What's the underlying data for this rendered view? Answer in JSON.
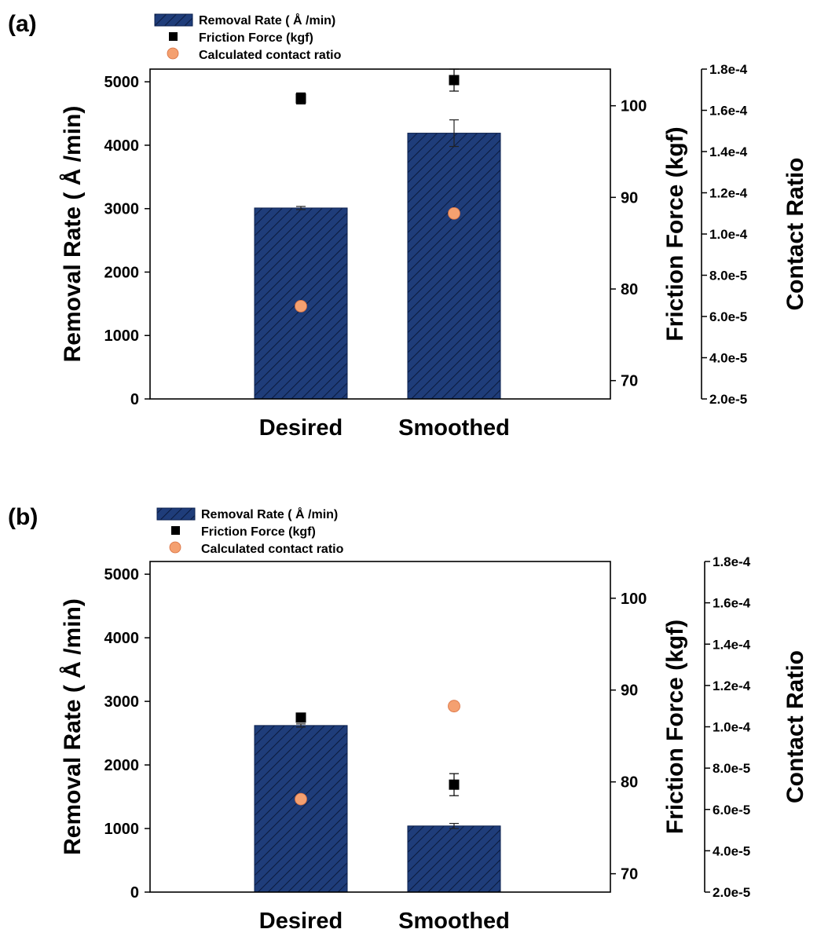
{
  "chart_data": [
    {
      "panel_label": "(a)",
      "type": "bar",
      "categories": [
        "Desired",
        "Smoothed"
      ],
      "legend": [
        {
          "label": "Removal Rate ( Å /min)",
          "marker": "hatched-bar"
        },
        {
          "label": "Friction Force (kgf)",
          "marker": "black-square"
        },
        {
          "label": "Calculated contact ratio",
          "marker": "orange-circle"
        }
      ],
      "axes": {
        "left": {
          "label": "Removal Rate ( Å /min)",
          "ylim": [
            0,
            5200
          ],
          "ticks": [
            0,
            1000,
            2000,
            3000,
            4000,
            5000
          ],
          "tick_labels": [
            "0",
            "1000",
            "2000",
            "3000",
            "4000",
            "5000"
          ]
        },
        "right1": {
          "label": "Friction Force (kgf)",
          "ylim": [
            68,
            104
          ],
          "ticks": [
            70,
            80,
            90,
            100
          ],
          "tick_labels": [
            "70",
            "80",
            "90",
            "100"
          ]
        },
        "right2": {
          "label": "Contact Ratio",
          "ylim": [
            2e-05,
            0.00018
          ],
          "ticks": [
            2e-05,
            4e-05,
            6e-05,
            8e-05,
            0.0001,
            0.00012,
            0.00014,
            0.00016,
            0.00018
          ],
          "tick_labels": [
            "2.0e-5",
            "4.0e-5",
            "6.0e-5",
            "8.0e-5",
            "1.0e-4",
            "1.2e-4",
            "1.4e-4",
            "1.6e-4",
            "1.8e-4"
          ]
        }
      },
      "series": [
        {
          "name": "Removal Rate ( Å /min)",
          "axis": "left",
          "kind": "bar",
          "values": [
            3010,
            4190
          ],
          "errors": [
            25,
            210
          ]
        },
        {
          "name": "Friction Force (kgf)",
          "axis": "right1",
          "kind": "square",
          "values": [
            100.8,
            102.8
          ],
          "errors": [
            0.6,
            1.2
          ]
        },
        {
          "name": "Calculated contact ratio",
          "axis": "right2",
          "kind": "circle",
          "values": [
            6.5e-05,
            0.00011
          ]
        }
      ]
    },
    {
      "panel_label": "(b)",
      "type": "bar",
      "categories": [
        "Desired",
        "Smoothed"
      ],
      "legend": [
        {
          "label": "Removal Rate ( Å /min)",
          "marker": "hatched-bar"
        },
        {
          "label": "Friction Force (kgf)",
          "marker": "black-square"
        },
        {
          "label": "Calculated contact ratio",
          "marker": "orange-circle"
        }
      ],
      "axes": {
        "left": {
          "label": "Removal Rate ( Å /min)",
          "ylim": [
            0,
            5200
          ],
          "ticks": [
            0,
            1000,
            2000,
            3000,
            4000,
            5000
          ],
          "tick_labels": [
            "0",
            "1000",
            "2000",
            "3000",
            "4000",
            "5000"
          ]
        },
        "right1": {
          "label": "Friction Force (kgf)",
          "ylim": [
            68,
            104
          ],
          "ticks": [
            70,
            80,
            90,
            100
          ],
          "tick_labels": [
            "70",
            "80",
            "90",
            "100"
          ]
        },
        "right2": {
          "label": "Contact Ratio",
          "ylim": [
            2e-05,
            0.00018
          ],
          "ticks": [
            2e-05,
            4e-05,
            6e-05,
            8e-05,
            0.0001,
            0.00012,
            0.00014,
            0.00016,
            0.00018
          ],
          "tick_labels": [
            "2.0e-5",
            "4.0e-5",
            "6.0e-5",
            "8.0e-5",
            "1.0e-4",
            "1.2e-4",
            "1.4e-4",
            "1.6e-4",
            "1.8e-4"
          ]
        }
      },
      "series": [
        {
          "name": "Removal Rate ( Å /min)",
          "axis": "left",
          "kind": "bar",
          "values": [
            2620,
            1040
          ],
          "errors": [
            25,
            40
          ]
        },
        {
          "name": "Friction Force (kgf)",
          "axis": "right1",
          "kind": "square",
          "values": [
            87.0,
            79.7
          ],
          "errors": [
            0.3,
            1.2
          ]
        },
        {
          "name": "Calculated contact ratio",
          "axis": "right2",
          "kind": "circle",
          "values": [
            6.5e-05,
            0.00011
          ]
        }
      ]
    }
  ],
  "colors": {
    "bar_fill": "#1f3d7a",
    "bar_edge": "#0a1f4d",
    "hatch": "#0b1a3d",
    "square": "#000000",
    "circle": "#f4a070",
    "circle_edge": "#d97040"
  }
}
